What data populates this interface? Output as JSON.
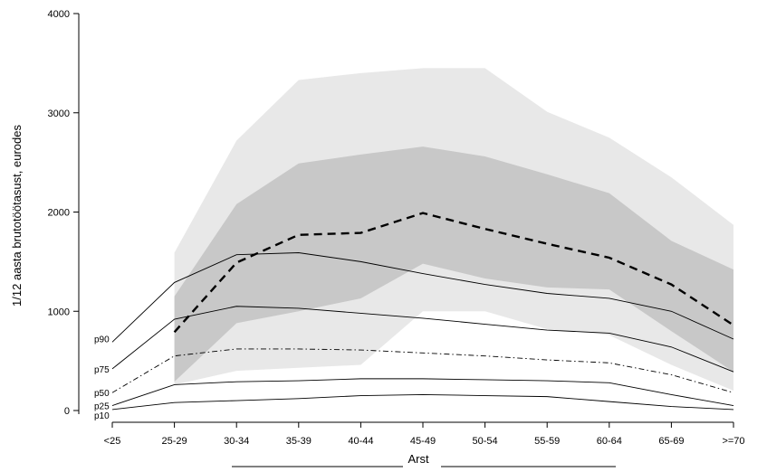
{
  "chart_data": {
    "type": "line",
    "title": "",
    "xlabel": "Arst",
    "ylabel": "1/12 aasta brutotöötasust, eurodes",
    "categories": [
      "<25",
      "25-29",
      "30-34",
      "35-39",
      "40-44",
      "45-49",
      "50-54",
      "55-59",
      "60-64",
      "65-69",
      ">=70"
    ],
    "ylim": [
      0,
      4000
    ],
    "yticks": [
      0,
      1000,
      2000,
      3000,
      4000
    ],
    "grid": false,
    "legend": "none",
    "percentile_lines": [
      {
        "name": "p90",
        "style": "solid",
        "values": [
          690,
          1290,
          1570,
          1590,
          1500,
          1380,
          1270,
          1180,
          1130,
          1000,
          720
        ]
      },
      {
        "name": "p75",
        "style": "solid",
        "values": [
          420,
          920,
          1050,
          1030,
          980,
          930,
          870,
          810,
          780,
          640,
          390
        ]
      },
      {
        "name": "p50",
        "style": "dashdot",
        "values": [
          180,
          550,
          620,
          620,
          610,
          580,
          550,
          510,
          480,
          360,
          180
        ]
      },
      {
        "name": "p25",
        "style": "solid",
        "values": [
          50,
          260,
          290,
          300,
          320,
          320,
          310,
          300,
          280,
          160,
          50
        ]
      },
      {
        "name": "p10",
        "style": "solid",
        "values": [
          10,
          80,
          100,
          120,
          150,
          160,
          150,
          140,
          90,
          40,
          10
        ]
      }
    ],
    "arst_series": {
      "style": "dashed",
      "start_index": 1,
      "values": [
        null,
        790,
        1490,
        1770,
        1790,
        1990,
        1830,
        1680,
        1540,
        1270,
        860
      ]
    },
    "arst_bands": {
      "start_index": 1,
      "outer": {
        "color": "#e8e8e8",
        "lower": [
          null,
          260,
          400,
          430,
          460,
          1000,
          1000,
          820,
          760,
          460,
          200
        ],
        "upper": [
          null,
          1590,
          2720,
          3330,
          3400,
          3450,
          3450,
          3010,
          2750,
          2350,
          1870
        ]
      },
      "inner": {
        "color": "#c8c8c8",
        "lower": [
          null,
          290,
          880,
          1000,
          1130,
          1480,
          1330,
          1240,
          1220,
          800,
          390
        ],
        "upper": [
          null,
          1150,
          2080,
          2490,
          2580,
          2660,
          2560,
          2380,
          2190,
          1710,
          1420
        ]
      }
    }
  }
}
